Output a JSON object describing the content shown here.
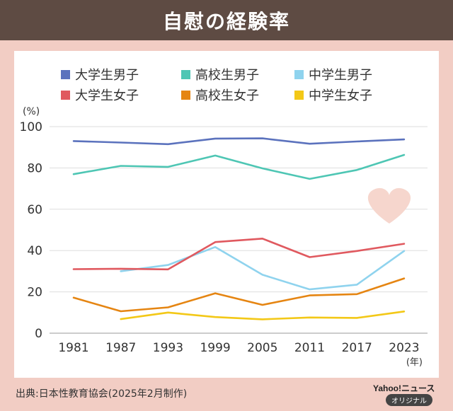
{
  "header": {
    "title": "自慰の経験率"
  },
  "footer": {
    "source": "出典:日本性教育協会(2025年2月制作)",
    "logo_text": "Yahoo!ニュース",
    "badge_text": "オリジナル"
  },
  "colors": {
    "background": "#f2cdc4",
    "header_bg": "#5e4b43",
    "grid": "#dddddd",
    "heart": "#f6d6cd"
  },
  "chart_data": {
    "type": "line",
    "title": "自慰の経験率",
    "xlabel": "(年)",
    "ylabel": "(%)",
    "ylim": [
      0,
      100
    ],
    "yticks": [
      0,
      20,
      40,
      60,
      80,
      100
    ],
    "grid": true,
    "legend_position": "top",
    "categories": [
      "1981",
      "1987",
      "1993",
      "1999",
      "2005",
      "2011",
      "2017",
      "2023"
    ],
    "series": [
      {
        "name": "大学生男子",
        "color": "#5b72bd",
        "values": [
          93,
          92.3,
          91.5,
          94.2,
          94.3,
          91.7,
          92.8,
          93.8
        ]
      },
      {
        "name": "高校生男子",
        "color": "#4ec6b4",
        "values": [
          77,
          81,
          80.5,
          86,
          79.8,
          74.7,
          79,
          86.3
        ]
      },
      {
        "name": "中学生男子",
        "color": "#8fd3ee",
        "values": [
          null,
          30,
          33,
          41.7,
          28.3,
          21.2,
          23.5,
          39.8
        ]
      },
      {
        "name": "大学生女子",
        "color": "#e0595f",
        "values": [
          31,
          31.2,
          30.9,
          44.1,
          45.8,
          36.8,
          39.8,
          43.3
        ]
      },
      {
        "name": "高校生女子",
        "color": "#e58512",
        "values": [
          17.2,
          10.6,
          12.5,
          19.3,
          13.7,
          18.3,
          18.9,
          26.5
        ]
      },
      {
        "name": "中学生女子",
        "color": "#f3c817",
        "values": [
          null,
          6.8,
          10,
          7.8,
          6.7,
          7.6,
          7.4,
          10.5
        ]
      }
    ]
  }
}
